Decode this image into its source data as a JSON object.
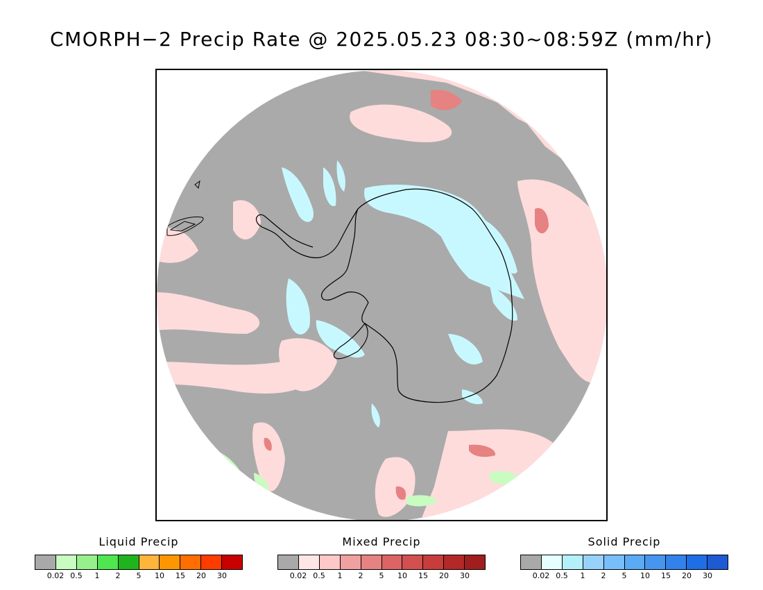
{
  "title": "CMORPH−2 Precip Rate @ 2025.05.23 08:30~08:59Z (mm/hr)",
  "map": {
    "projection": "south-polar-stereographic",
    "background_color": "#aaaaaa",
    "coastline_color": "#000000"
  },
  "legends": [
    {
      "title": "Liquid Precip",
      "colors": [
        "#a9a9a9",
        "#c8fcc0",
        "#96f08c",
        "#50e650",
        "#1eb41e",
        "#ffb43c",
        "#ff9600",
        "#ff6e00",
        "#ff3c00",
        "#c80000"
      ],
      "ticks": [
        "0.02",
        "0.5",
        "1",
        "2",
        "5",
        "10",
        "15",
        "20",
        "30"
      ]
    },
    {
      "title": "Mixed Precip",
      "colors": [
        "#a9a9a9",
        "#ffe6e6",
        "#ffc8c8",
        "#f0a0a0",
        "#e68282",
        "#dc6464",
        "#d25050",
        "#c83c3c",
        "#b42828",
        "#a01e1e"
      ],
      "ticks": [
        "0.02",
        "0.5",
        "1",
        "2",
        "5",
        "10",
        "15",
        "20",
        "30"
      ]
    },
    {
      "title": "Solid Precip",
      "colors": [
        "#a9a9a9",
        "#e6ffff",
        "#b4f0fa",
        "#96d2fa",
        "#78befa",
        "#5aaaf5",
        "#4696f0",
        "#3282eb",
        "#1e6ee6",
        "#1e5ad2"
      ],
      "ticks": [
        "0.02",
        "0.5",
        "1",
        "2",
        "5",
        "10",
        "15",
        "20",
        "30"
      ]
    }
  ]
}
